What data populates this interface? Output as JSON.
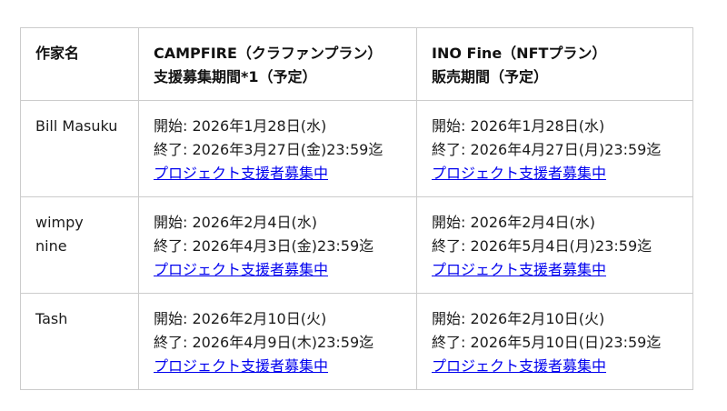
{
  "colors": {
    "link": "#0000ee",
    "border": "#cccccc",
    "text": "#1b1b1b",
    "background": "#ffffff"
  },
  "table": {
    "columns": [
      {
        "label": "作家名"
      },
      {
        "line1": "CAMPFIRE（クラファンプラン）",
        "line2": "支援募集期間*1（予定）"
      },
      {
        "line1": "INO Fine（NFTプラン）",
        "line2": "販売期間（予定）"
      }
    ],
    "rows": [
      {
        "author": "Bill Masuku",
        "campfire_start": "開始: 2026年1月28日(水)",
        "campfire_end": "終了: 2026年3月27日(金)23:59迄",
        "campfire_link": "プロジェクト支援者募集中",
        "ino_start": "開始: 2026年1月28日(水)",
        "ino_end": "終了: 2026年4月27日(月)23:59迄",
        "ino_link": "プロジェクト支援者募集中"
      },
      {
        "author": "wimpy\nnine",
        "campfire_start": "開始: 2026年2月4日(水)",
        "campfire_end": "終了: 2026年4月3日(金)23:59迄",
        "campfire_link": "プロジェクト支援者募集中",
        "ino_start": "開始: 2026年2月4日(水)",
        "ino_end": "終了: 2026年5月4日(月)23:59迄",
        "ino_link": "プロジェクト支援者募集中"
      },
      {
        "author": "Tash",
        "campfire_start": "開始: 2026年2月10日(火)",
        "campfire_end": "終了: 2026年4月9日(木)23:59迄",
        "campfire_link": "プロジェクト支援者募集中",
        "ino_start": "開始: 2026年2月10日(火)",
        "ino_end": "終了: 2026年5月10日(日)23:59迄",
        "ino_link": "プロジェクト支援者募集中"
      }
    ]
  }
}
